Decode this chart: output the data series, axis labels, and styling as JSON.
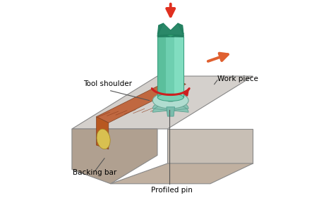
{
  "bg_color": "#ffffff",
  "labels": {
    "tool_shoulder": "Tool shoulder",
    "backing_bar": "Backing bar",
    "profiled_pin": "Profiled pin",
    "work_piece": "Work piece"
  },
  "colors": {
    "tool_body": "#6ecfb0",
    "tool_body_dark": "#3a9e80",
    "tool_top": "#2e8060",
    "tool_shoulder_disk": "#a0d8c8",
    "workpiece_top": "#d4d0cc",
    "workpiece_left": "#b0a090",
    "workpiece_right": "#c8bfb5",
    "workpiece_front": "#c0b0a0",
    "weld_top": "#c06840",
    "weld_left": "#c07030",
    "weld_nugget": "#d8c050",
    "arrow_down": "#e03020",
    "arrow_right": "#e06030",
    "arrow_rotate": "#cc2020",
    "label_color": "#000000",
    "line_color": "#555555"
  }
}
